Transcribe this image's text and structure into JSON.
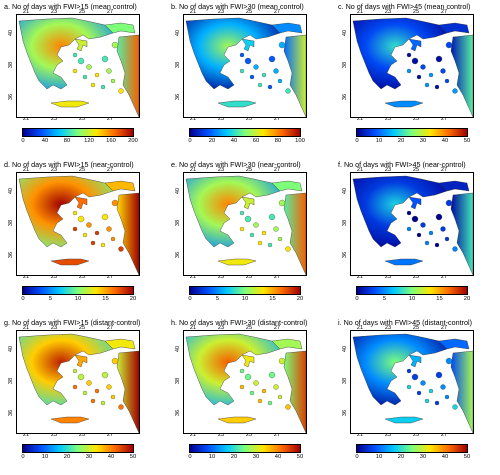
{
  "colors": {
    "scale": [
      "#00008f",
      "#0050ff",
      "#00c8ff",
      "#7dff7a",
      "#ffe600",
      "#ff6a00",
      "#a00000"
    ]
  },
  "axes": {
    "lon_ticks": [
      "21",
      "23",
      "25",
      "27"
    ],
    "lat_ticks": [
      "40",
      "38",
      "36"
    ]
  },
  "panels": [
    {
      "title": "a. No of days with FWI>15 (mean control)",
      "cbar": [
        "0",
        "40",
        "80",
        "120",
        "160",
        "200"
      ],
      "level": 0.55
    },
    {
      "title": "b. No of days with FWI>30 (mean control)",
      "cbar": [
        "0",
        "20",
        "40",
        "60",
        "80",
        "100"
      ],
      "level": 0.3
    },
    {
      "title": "c. No of days with FWI>45 (mean control)",
      "cbar": [
        "0",
        "10",
        "20",
        "30",
        "40",
        "50"
      ],
      "level": 0.15
    },
    {
      "title": "d. No of days with FWI>15 (near-control)",
      "cbar": [
        "0",
        "5",
        "10",
        "15",
        "20"
      ],
      "level": 0.78
    },
    {
      "title": "e. No of days with FWI>30 (near-control)",
      "cbar": [
        "0",
        "5",
        "10",
        "15",
        "20"
      ],
      "level": 0.55
    },
    {
      "title": "f. No of days with FWI>45 (near-control)",
      "cbar": [
        "0",
        "5",
        "10",
        "15",
        "20"
      ],
      "level": 0.12
    },
    {
      "title": "g. No of days with FWI>15 (distant-control)",
      "cbar": [
        "0",
        "10",
        "20",
        "30",
        "40",
        "50"
      ],
      "level": 0.7
    },
    {
      "title": "h. No of days with FWI>30 (distant-control)",
      "cbar": [
        "0",
        "10",
        "20",
        "30",
        "40",
        "50"
      ],
      "level": 0.6
    },
    {
      "title": "i. No of days with FWI>45 (distant-control)",
      "cbar": [
        "0",
        "10",
        "20",
        "30",
        "40",
        "50"
      ],
      "level": 0.25
    }
  ]
}
